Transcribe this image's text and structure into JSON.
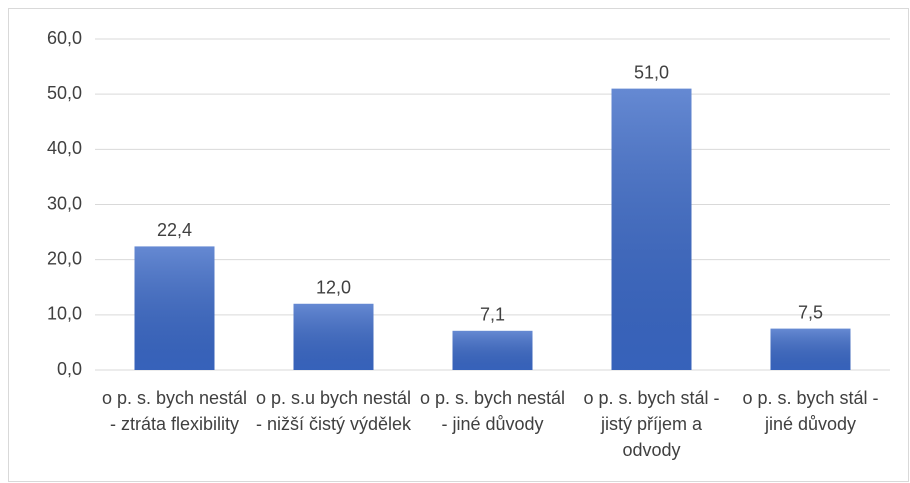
{
  "chart_data": {
    "type": "bar",
    "categories": [
      "o p. s. bych nestál - ztráta flexibility",
      "o p. s.u bych nestál - nižší čistý výdělek",
      "o p. s. bych nestál - jiné důvody",
      "o p. s. bych stál - jistý příjem a odvody",
      "o p. s. bych stál - jiné důvody"
    ],
    "values": [
      22.4,
      12.0,
      7.1,
      51.0,
      7.5
    ],
    "value_labels": [
      "22,4",
      "12,0",
      "7,1",
      "51,0",
      "7,5"
    ],
    "color": "#3a68c6",
    "ylim": [
      0,
      60
    ],
    "yticks": [
      {
        "value": 0,
        "label": "0,0"
      },
      {
        "value": 10,
        "label": "10,0"
      },
      {
        "value": 20,
        "label": "20,0"
      },
      {
        "value": 30,
        "label": "30,0"
      },
      {
        "value": 40,
        "label": "40,0"
      },
      {
        "value": 50,
        "label": "50,0"
      },
      {
        "value": 60,
        "label": "60,0"
      }
    ],
    "grid": true
  }
}
